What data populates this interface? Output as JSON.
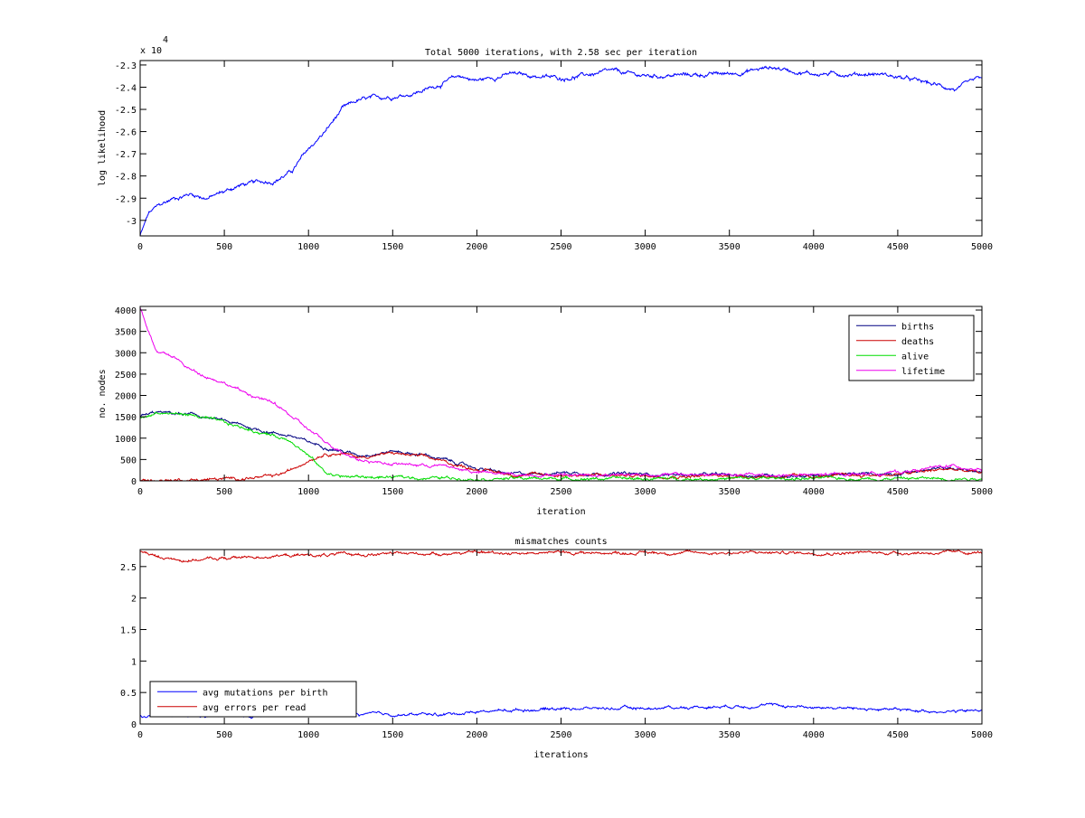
{
  "chart_data": [
    {
      "type": "line",
      "title": "Total 5000 iterations, with 2.58 sec per iteration",
      "xlabel": "",
      "ylabel": "log likelihood",
      "exponent_label": "x 10",
      "exponent": "4",
      "xlim": [
        0,
        5000
      ],
      "ylim": [
        -3.07,
        -2.28
      ],
      "xticks": [
        0,
        500,
        1000,
        1500,
        2000,
        2500,
        3000,
        3500,
        4000,
        4500,
        5000
      ],
      "yticks": [
        -3,
        -2.9,
        -2.8,
        -2.7,
        -2.6,
        -2.5,
        -2.4,
        -2.3
      ],
      "ytick_labels": [
        "-3",
        "-2.9",
        "-2.8",
        "-2.7",
        "-2.6",
        "-2.5",
        "-2.4",
        "-2.3"
      ],
      "noise": 0.008,
      "series": [
        {
          "name": "log likelihood",
          "color": "#0000ff",
          "x": [
            0,
            50,
            100,
            200,
            300,
            400,
            500,
            600,
            700,
            800,
            900,
            1000,
            1100,
            1200,
            1300,
            1400,
            1500,
            1600,
            1700,
            1800,
            1900,
            2000,
            2200,
            2500,
            2800,
            3000,
            3500,
            3750,
            4000,
            4400,
            4600,
            4850,
            5000
          ],
          "y": [
            -3.07,
            -2.97,
            -2.94,
            -2.9,
            -2.88,
            -2.9,
            -2.87,
            -2.84,
            -2.83,
            -2.82,
            -2.78,
            -2.68,
            -2.6,
            -2.5,
            -2.46,
            -2.45,
            -2.44,
            -2.43,
            -2.41,
            -2.38,
            -2.35,
            -2.37,
            -2.34,
            -2.36,
            -2.33,
            -2.35,
            -2.34,
            -2.31,
            -2.34,
            -2.34,
            -2.37,
            -2.41,
            -2.36
          ]
        }
      ]
    },
    {
      "type": "line",
      "title": "",
      "xlabel": "iteration",
      "ylabel": "no. nodes",
      "xlim": [
        0,
        5000
      ],
      "ylim": [
        0,
        4085
      ],
      "xticks": [
        0,
        500,
        1000,
        1500,
        2000,
        2500,
        3000,
        3500,
        4000,
        4500,
        5000
      ],
      "yticks": [
        0,
        500,
        1000,
        1500,
        2000,
        2500,
        3000,
        3500,
        4000
      ],
      "ytick_labels": [
        "0",
        "500",
        "1000",
        "1500",
        "2000",
        "2500",
        "3000",
        "3500",
        "4000"
      ],
      "legend": "top-right",
      "noise": 30,
      "series": [
        {
          "name": "births",
          "color": "#000080",
          "x": [
            0,
            100,
            300,
            500,
            700,
            900,
            1000,
            1100,
            1200,
            1300,
            1500,
            1700,
            1900,
            2000,
            2200,
            2500,
            3000,
            4000,
            4500,
            4800,
            5000
          ],
          "y": [
            1500,
            1600,
            1550,
            1400,
            1200,
            1050,
            900,
            800,
            700,
            600,
            700,
            600,
            400,
            300,
            150,
            200,
            150,
            120,
            180,
            300,
            200
          ]
        },
        {
          "name": "deaths",
          "color": "#cc0000",
          "x": [
            0,
            500,
            800,
            900,
            1000,
            1100,
            1200,
            1300,
            1500,
            1700,
            1900,
            2000,
            2200,
            3000,
            4000,
            4500,
            4800,
            5000
          ],
          "y": [
            10,
            40,
            100,
            250,
            500,
            650,
            650,
            550,
            650,
            550,
            350,
            280,
            150,
            120,
            100,
            150,
            280,
            180
          ]
        },
        {
          "name": "alive",
          "color": "#00dd00",
          "x": [
            0,
            100,
            300,
            500,
            700,
            900,
            1000,
            1100,
            1200,
            1500,
            2000,
            3000,
            5000
          ],
          "y": [
            1450,
            1600,
            1550,
            1350,
            1150,
            950,
            600,
            200,
            100,
            80,
            60,
            50,
            60
          ]
        },
        {
          "name": "lifetime",
          "color": "#ee00ee",
          "x": [
            0,
            100,
            200,
            300,
            400,
            500,
            600,
            700,
            800,
            900,
            1000,
            1100,
            1200,
            1300,
            1500,
            1800,
            2000,
            2200,
            3000,
            4000,
            4500,
            4800,
            5000
          ],
          "y": [
            4050,
            3000,
            2900,
            2600,
            2450,
            2300,
            2100,
            1950,
            1800,
            1500,
            1200,
            900,
            700,
            500,
            400,
            350,
            200,
            150,
            150,
            130,
            200,
            350,
            280
          ]
        }
      ]
    },
    {
      "type": "line",
      "title": "mismatches counts",
      "xlabel": "iterations",
      "ylabel": "",
      "xlim": [
        0,
        5000
      ],
      "ylim": [
        0,
        2.77
      ],
      "xticks": [
        0,
        500,
        1000,
        1500,
        2000,
        2500,
        3000,
        3500,
        4000,
        4500,
        5000
      ],
      "yticks": [
        0,
        0.5,
        1,
        1.5,
        2,
        2.5
      ],
      "ytick_labels": [
        "0",
        "0.5",
        "1",
        "1.5",
        "2",
        "2.5"
      ],
      "legend": "bottom-left",
      "noise": 0.02,
      "series": [
        {
          "name": "avg mutations per birth",
          "color": "#0000ff",
          "x": [
            0,
            500,
            1000,
            1500,
            1800,
            2000,
            2500,
            3000,
            3700,
            4500,
            4900,
            5000
          ],
          "y": [
            0.12,
            0.12,
            0.15,
            0.15,
            0.15,
            0.2,
            0.25,
            0.25,
            0.3,
            0.22,
            0.2,
            0.22
          ]
        },
        {
          "name": "avg errors per read",
          "color": "#cc0000",
          "x": [
            0,
            100,
            250,
            500,
            800,
            1000,
            1500,
            2000,
            5000
          ],
          "y": [
            2.75,
            2.65,
            2.6,
            2.63,
            2.67,
            2.68,
            2.7,
            2.72,
            2.72
          ]
        }
      ]
    }
  ]
}
